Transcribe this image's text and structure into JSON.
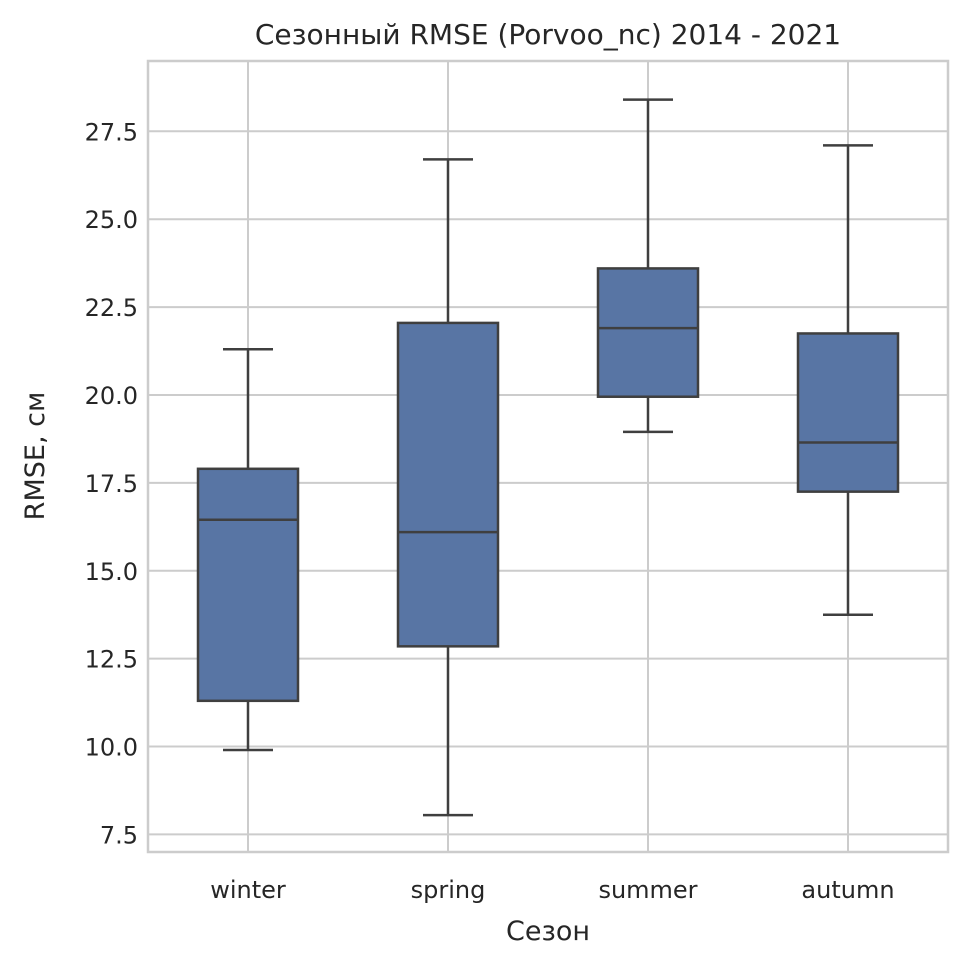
{
  "chart_data": {
    "type": "box",
    "title": "Сезонный RMSE (Porvoo_nc) 2014 - 2021",
    "xlabel": "Сезон",
    "ylabel": "RMSE, см",
    "categories": [
      "winter",
      "spring",
      "summer",
      "autumn"
    ],
    "boxes": [
      {
        "category": "winter",
        "whisker_low": 9.9,
        "q1": 11.3,
        "median": 16.45,
        "q3": 17.9,
        "whisker_high": 21.3
      },
      {
        "category": "spring",
        "whisker_low": 8.05,
        "q1": 12.85,
        "median": 16.1,
        "q3": 22.05,
        "whisker_high": 26.7
      },
      {
        "category": "summer",
        "whisker_low": 18.95,
        "q1": 19.95,
        "median": 21.9,
        "q3": 23.6,
        "whisker_high": 28.4
      },
      {
        "category": "autumn",
        "whisker_low": 13.75,
        "q1": 17.25,
        "median": 18.65,
        "q3": 21.75,
        "whisker_high": 27.1
      }
    ],
    "yticks": [
      7.5,
      10.0,
      12.5,
      15.0,
      17.5,
      20.0,
      22.5,
      25.0,
      27.5
    ],
    "ytick_labels": [
      "7.5",
      "10.0",
      "12.5",
      "15.0",
      "17.5",
      "20.0",
      "22.5",
      "25.0",
      "27.5"
    ],
    "ylim": [
      7.0,
      29.5
    ],
    "grid": true,
    "colors": {
      "box_fill": "#5875a4",
      "line": "#3f3f3f",
      "grid": "#cccccc"
    }
  }
}
